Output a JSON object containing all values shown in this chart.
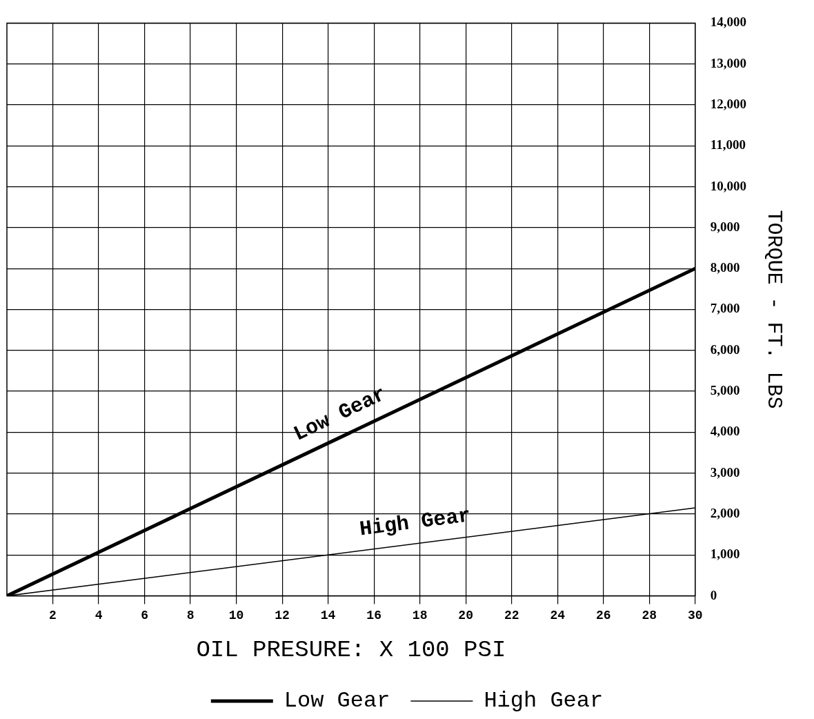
{
  "chart_data": {
    "type": "line",
    "xlabel": "OIL PRESURE: X 100 PSI",
    "ylabel": "TORQUE - FT. LBS",
    "x": [
      0,
      30
    ],
    "series": [
      {
        "name": "Low Gear",
        "color": "#000000",
        "values": [
          0,
          8000
        ]
      },
      {
        "name": "High Gear",
        "color": "#000000",
        "values": [
          0,
          2150
        ]
      }
    ],
    "xlim": [
      0,
      30
    ],
    "xticks": [
      2,
      4,
      6,
      8,
      10,
      12,
      14,
      16,
      18,
      20,
      22,
      24,
      26,
      28,
      30
    ],
    "ylim": [
      0,
      14000
    ],
    "yticks": [
      {
        "value": 0,
        "label": "0"
      },
      {
        "value": 1000,
        "label": "1,000"
      },
      {
        "value": 2000,
        "label": "2,000"
      },
      {
        "value": 3000,
        "label": "3,000"
      },
      {
        "value": 4000,
        "label": "4,000"
      },
      {
        "value": 5000,
        "label": "5,000"
      },
      {
        "value": 6000,
        "label": "6,000"
      },
      {
        "value": 7000,
        "label": "7,000"
      },
      {
        "value": 8000,
        "label": "8,000"
      },
      {
        "value": 9000,
        "label": "9,000"
      },
      {
        "value": 10000,
        "label": "10,000"
      },
      {
        "value": 11000,
        "label": "11,000"
      },
      {
        "value": 12000,
        "label": "12,000"
      },
      {
        "value": 13000,
        "label": "13,000"
      },
      {
        "value": 14000,
        "label": "14,000"
      }
    ],
    "annotations": [
      "Low Gear",
      "High Gear"
    ],
    "grid": true,
    "legend": "bottom",
    "marker": "none",
    "line_style": "solid"
  }
}
